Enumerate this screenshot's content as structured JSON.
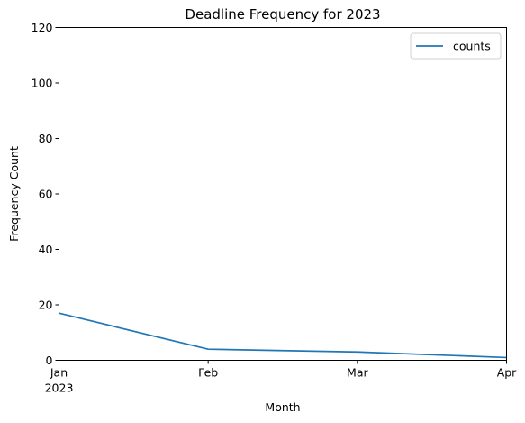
{
  "chart_data": {
    "type": "line",
    "title": "Deadline Frequency for 2023",
    "xlabel": "Month",
    "ylabel": "Frequency Count",
    "x": [
      "2023-01",
      "2023-02",
      "2023-03",
      "2023-04"
    ],
    "x_tick_labels": [
      "Jan",
      "Feb",
      "Mar",
      "Apr"
    ],
    "x_year_label": "2023",
    "y_ticks": [
      0,
      20,
      40,
      60,
      80,
      100,
      120
    ],
    "ylim": [
      0,
      120
    ],
    "series": [
      {
        "name": "counts",
        "values": [
          17,
          4,
          3,
          1
        ],
        "color": "#1f77b4"
      }
    ],
    "legend": {
      "position": "top-right"
    },
    "grid": false
  }
}
